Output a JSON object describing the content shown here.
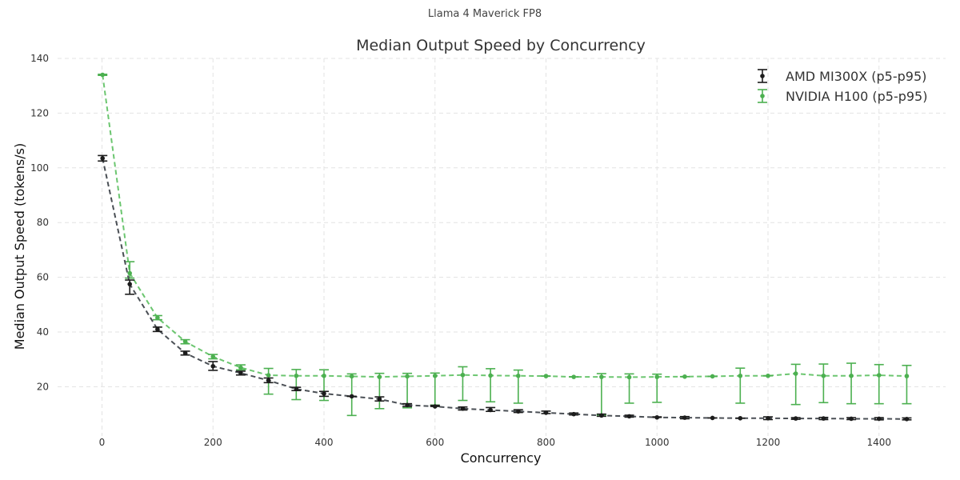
{
  "chart_data": {
    "type": "line",
    "suptitle": "Llama 4 Maverick FP8",
    "title": "Median Output Speed by Concurrency",
    "xlabel": "Concurrency",
    "ylabel": "Median Output Speed (tokens/s)",
    "xlim": [
      -80,
      1520
    ],
    "ylim": [
      2,
      140
    ],
    "xticks": [
      0,
      200,
      400,
      600,
      800,
      1000,
      1200,
      1400
    ],
    "yticks": [
      20,
      40,
      60,
      80,
      100,
      120,
      140
    ],
    "grid": true,
    "legend_position": "top-right",
    "x": [
      1,
      50,
      100,
      150,
      200,
      250,
      300,
      350,
      400,
      450,
      500,
      550,
      600,
      650,
      700,
      750,
      800,
      850,
      900,
      950,
      1000,
      1050,
      1100,
      1150,
      1200,
      1250,
      1300,
      1350,
      1400,
      1450
    ],
    "series": [
      {
        "name": "AMD MI300X (p5-p95)",
        "color": "#1c1c1c",
        "line_color": "#4a4f55",
        "values": [
          103.5,
          57.5,
          41,
          32.3,
          27.5,
          25,
          22.3,
          19.2,
          17.5,
          16.5,
          15.5,
          13.3,
          12.8,
          12,
          11.5,
          11,
          10.5,
          10,
          9.5,
          9.2,
          8.8,
          8.7,
          8.6,
          8.5,
          8.5,
          8.4,
          8.4,
          8.3,
          8.3,
          8.2
        ],
        "lower": [
          102.5,
          53.8,
          40.2,
          31.6,
          26,
          24.3,
          21.5,
          18.6,
          16.5,
          16.5,
          14.8,
          12.8,
          12.8,
          11.5,
          11,
          10.6,
          10.2,
          9.7,
          9.2,
          8.9,
          8.8,
          8.3,
          8.6,
          8.5,
          8,
          8.1,
          8,
          8,
          7.9,
          7.9
        ],
        "upper": [
          104.5,
          59,
          41.8,
          33,
          29.2,
          25.7,
          23.2,
          19.8,
          18.3,
          16.5,
          16.3,
          13.8,
          13.2,
          12.6,
          12.4,
          11.6,
          11.1,
          10.4,
          10,
          9.6,
          9,
          9.1,
          8.6,
          8.5,
          9,
          8.7,
          8.8,
          8.7,
          8.7,
          8.6
        ]
      },
      {
        "name": "NVIDIA H100 (p5-p95)",
        "color": "#4cb050",
        "line_color": "#6cc670",
        "values": [
          134,
          61.5,
          45.2,
          36.5,
          31,
          27,
          24.2,
          24,
          24,
          23.8,
          23.6,
          23.8,
          24,
          24.3,
          24.1,
          24,
          23.9,
          23.6,
          23.6,
          23.5,
          23.6,
          23.7,
          23.8,
          24,
          24,
          24.8,
          24,
          24,
          24.2,
          23.9
        ],
        "lower": [
          133.8,
          59.7,
          44.5,
          35.7,
          30.2,
          26.2,
          17.3,
          15.3,
          15,
          9.5,
          12,
          12.3,
          13.3,
          15,
          14.5,
          14,
          23.9,
          23.6,
          9.7,
          14,
          14.3,
          23.7,
          23.8,
          14,
          24,
          13.5,
          14.2,
          13.8,
          13.8,
          13.8
        ],
        "upper": [
          134.2,
          65.7,
          46,
          37.2,
          31.8,
          28,
          26.7,
          26.3,
          26.2,
          24.7,
          24.9,
          24.9,
          25,
          27.3,
          26.6,
          26.1,
          23.9,
          23.6,
          24.8,
          24.7,
          24.6,
          23.7,
          23.8,
          26.8,
          24,
          28.2,
          28.3,
          28.6,
          28.1,
          27.8
        ]
      }
    ]
  }
}
